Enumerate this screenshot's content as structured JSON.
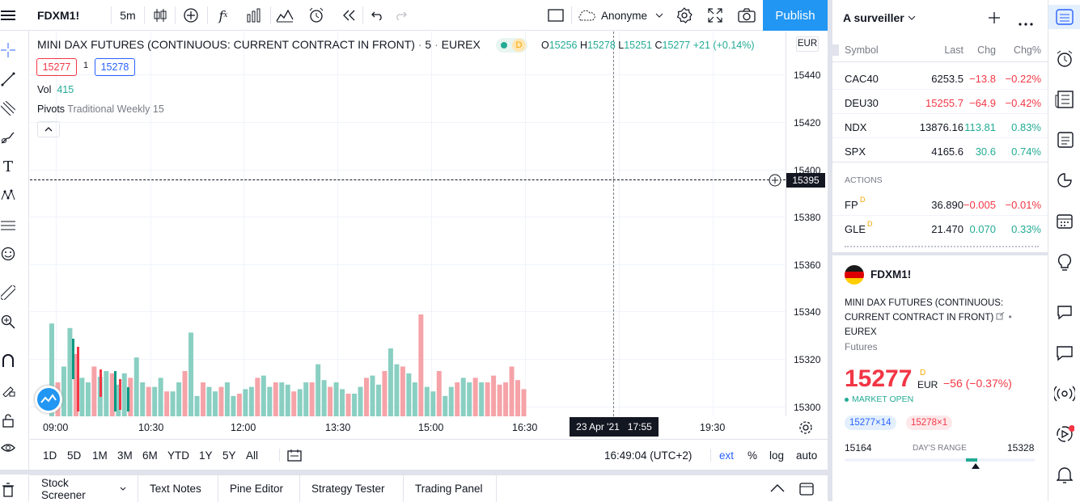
{
  "topbar": {
    "symbol": "FDXM1!",
    "interval": "5m",
    "account": "Anonyme",
    "publish": "Publish"
  },
  "legend": {
    "title": "MINI DAX FUTURES (CONTINUOUS: CURRENT CONTRACT IN FRONT)",
    "interval": "5",
    "exchange": "EUREX",
    "badge": "D",
    "o_label": "O",
    "o_val": "15256",
    "h_label": "H",
    "h_val": "15278",
    "l_label": "L",
    "l_val": "15251",
    "c_label": "C",
    "c_val": "15277",
    "change": "+21 (+0.14%)",
    "bid": "15277",
    "spread": "1",
    "ask": "15278",
    "vol_label": "Vol",
    "vol_val": "415",
    "pivots_label": "Pivots",
    "pivots_val": "Traditional Weekly 15",
    "currency": "EUR"
  },
  "price_axis": {
    "labels": [
      "15440",
      "15420",
      "15400",
      "15380",
      "15360",
      "15340",
      "15320",
      "15300"
    ],
    "crosshair_price": "15395"
  },
  "time_axis": {
    "labels": [
      "09:00",
      "10:30",
      "12:00",
      "13:30",
      "15:00",
      "16:30",
      "19:30"
    ],
    "crosshair_time": "23 Apr '21   17:55"
  },
  "bottom_toolbar": {
    "ranges": [
      "1D",
      "5D",
      "1M",
      "3M",
      "6M",
      "YTD",
      "1Y",
      "5Y",
      "All"
    ],
    "clock": "16:49:04 (UTC+2)",
    "ext": "ext",
    "percent": "%",
    "log": "log",
    "auto": "auto"
  },
  "bottom_tabs": [
    "Stock Screener",
    "Text Notes",
    "Pine Editor",
    "Strategy Tester",
    "Trading Panel"
  ],
  "watchlist": {
    "title": "A surveiller",
    "col_symbol": "Symbol",
    "col_last": "Last",
    "col_chg": "Chg",
    "col_chgp": "Chg%",
    "rows": [
      {
        "sym": "CAC40",
        "last": "6253.5",
        "chg": "−13.8",
        "chgp": "−0.22%",
        "dir": "down"
      },
      {
        "sym": "DEU30",
        "last": "15255.7",
        "chg": "−64.9",
        "chgp": "−0.42%",
        "dir": "down"
      },
      {
        "sym": "NDX",
        "last": "13876.16",
        "chg": "113.81",
        "chgp": "0.83%",
        "dir": "up"
      },
      {
        "sym": "SPX",
        "last": "4165.6",
        "chg": "30.6",
        "chgp": "0.74%",
        "dir": "up"
      }
    ],
    "section": "ACTIONS",
    "actions": [
      {
        "sym": "FP",
        "sup": "D",
        "last": "36.890",
        "chg": "−0.005",
        "chgp": "−0.01%",
        "dir": "down"
      },
      {
        "sym": "GLE",
        "sup": "D",
        "last": "21.470",
        "chg": "0.070",
        "chgp": "0.33%",
        "dir": "up"
      }
    ]
  },
  "detail": {
    "symbol": "FDXM1!",
    "desc1": "MINI DAX FUTURES (CONTINUOUS:",
    "desc2": "CURRENT CONTRACT IN FRONT)",
    "exchange": "EUREX",
    "type": "Futures",
    "price": "15277",
    "price_sup": "D",
    "currency": "EUR",
    "change": "−56 (−0.37%)",
    "status": "MARKET OPEN",
    "bid": "15277×14",
    "ask": "15278×1",
    "range_low": "15164",
    "range_label": "DAY'S RANGE",
    "range_high": "15328",
    "range_position": 0.69
  },
  "chart_data": {
    "type": "bar",
    "volumes_up": [
      0.82,
      0.44,
      0.78,
      0.34,
      0.3,
      0.35,
      0.4,
      0.28,
      0.38,
      0.52,
      0.3,
      0.26,
      0.34,
      0.22,
      0.3,
      0.74,
      0.18,
      0.26,
      0.22,
      0.3,
      0.18,
      0.24,
      0.26,
      0.36,
      0.26,
      0.3,
      0.28,
      0.24,
      0.3,
      0.46,
      0.32,
      0.3,
      0.24,
      0.2,
      0.26,
      0.36,
      0.28,
      0.6,
      0.46,
      0.38,
      0.3,
      0.26,
      0.22,
      0.18,
      0.26,
      0.34,
      0.3,
      0.3
    ],
    "volumes_down": [
      0.3,
      0.55,
      0.44,
      0.38,
      0.34,
      0.26,
      0.22,
      0.4,
      0.3,
      0.26,
      0.2,
      0.34,
      0.3,
      0.22,
      0.3,
      0.26,
      0.2,
      0.34,
      0.4,
      0.44,
      0.9,
      0.4,
      0.3,
      0.34,
      0.3,
      0.36,
      0.28,
      0.3,
      0.44,
      0.32,
      0.24
    ]
  }
}
